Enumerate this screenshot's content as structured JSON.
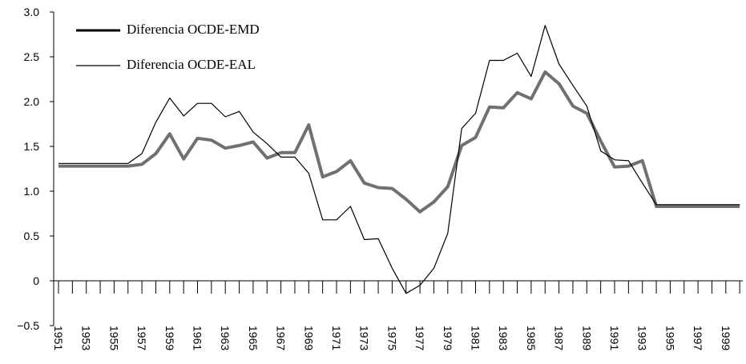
{
  "chart_data": {
    "type": "line",
    "categories": [
      "1951",
      null,
      "1953",
      null,
      "1955",
      null,
      "1957",
      null,
      "1959",
      null,
      "1961",
      null,
      "1963",
      null,
      "1965",
      null,
      "1967",
      null,
      "1969",
      null,
      "1971",
      null,
      "1973",
      null,
      "1975",
      null,
      "1977",
      null,
      "1979",
      null,
      "1981",
      null,
      "1983",
      null,
      "1985",
      null,
      "1987",
      null,
      "1989",
      null,
      "1991",
      null,
      "1993",
      null,
      "1995",
      null,
      "1997",
      null,
      "1999",
      null
    ],
    "series": [
      {
        "name": "Diferencia OCDE-EMD",
        "color": "#707070",
        "width": 4,
        "values": [
          1.28,
          1.28,
          1.28,
          1.28,
          1.28,
          1.28,
          1.3,
          1.42,
          1.64,
          1.36,
          1.59,
          1.57,
          1.48,
          1.51,
          1.55,
          1.37,
          1.43,
          1.43,
          1.74,
          1.16,
          1.22,
          1.34,
          1.09,
          1.04,
          1.03,
          0.91,
          0.77,
          0.88,
          1.05,
          1.51,
          1.6,
          1.94,
          1.93,
          2.1,
          2.03,
          2.33,
          2.2,
          1.95,
          1.87,
          1.56,
          1.27,
          1.28,
          1.34,
          0.83,
          0.83,
          0.83,
          0.83,
          0.83,
          0.83,
          0.83
        ]
      },
      {
        "name": "Diferencia OCDE-EAL",
        "color": "#000000",
        "width": 1.2,
        "values": [
          1.31,
          1.31,
          1.31,
          1.31,
          1.31,
          1.31,
          1.42,
          1.77,
          2.04,
          1.84,
          1.98,
          1.98,
          1.83,
          1.89,
          1.66,
          1.53,
          1.38,
          1.38,
          1.2,
          0.68,
          0.68,
          0.83,
          0.46,
          0.47,
          0.14,
          -0.14,
          -0.05,
          0.14,
          0.53,
          1.7,
          1.87,
          2.46,
          2.46,
          2.54,
          2.28,
          2.85,
          2.42,
          2.18,
          1.95,
          1.45,
          1.35,
          1.34,
          1.09,
          0.85,
          0.85,
          0.85,
          0.85,
          0.85,
          0.85,
          0.85
        ]
      }
    ],
    "ylim": [
      -0.5,
      3.0
    ],
    "yticks": [
      {
        "value": -0.5,
        "label": "−0.5"
      },
      0,
      {
        "value": 0.5,
        "label": "0.5"
      },
      {
        "value": 1,
        "label": "1.0"
      },
      {
        "value": 1.5,
        "label": "1.5"
      },
      {
        "value": 2,
        "label": "2.0"
      },
      {
        "value": 2.5,
        "label": "2.5"
      },
      {
        "value": 3,
        "label": "3.0"
      }
    ],
    "legend": "upper left",
    "grid": false
  }
}
